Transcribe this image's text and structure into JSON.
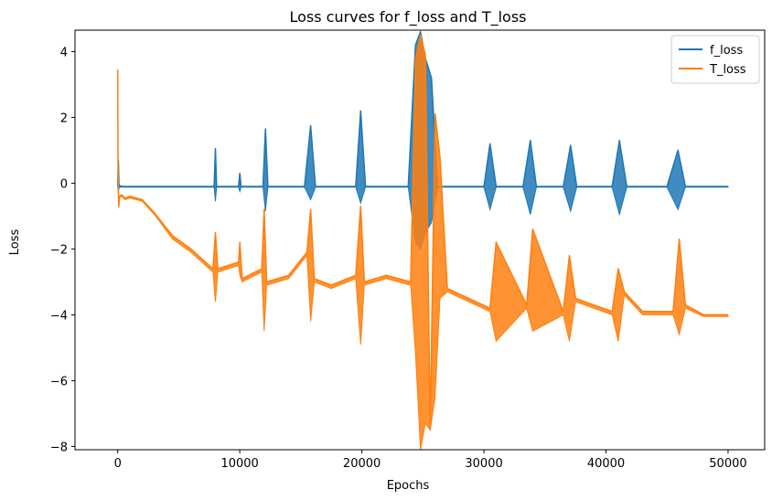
{
  "chart_data": {
    "type": "line",
    "title": "Loss curves for f_loss and T_loss",
    "xlabel": "Epochs",
    "ylabel": "Loss",
    "xlim": [
      -3500,
      53000
    ],
    "ylim": [
      -8.1,
      4.65
    ],
    "xticks": [
      0,
      10000,
      20000,
      30000,
      40000,
      50000
    ],
    "xtick_labels": [
      "0",
      "10000",
      "20000",
      "30000",
      "40000",
      "50000"
    ],
    "yticks": [
      -8,
      -6,
      -4,
      -2,
      0,
      2,
      4
    ],
    "ytick_labels": [
      "−8",
      "−6",
      "−4",
      "−2",
      "0",
      "2",
      "4"
    ],
    "grid": false,
    "legend_position": "top-right",
    "series": [
      {
        "name": "f_loss",
        "color": "#1f77b4",
        "x": [
          0,
          50,
          100,
          200,
          400,
          1000,
          2000,
          4000,
          7900,
          8000,
          8100,
          9900,
          10000,
          10100,
          11900,
          12100,
          12300,
          15300,
          15800,
          16200,
          19500,
          19900,
          20300,
          23800,
          24400,
          24800,
          25200,
          25700,
          26200,
          30000,
          30500,
          31000,
          33200,
          33800,
          34300,
          36500,
          37100,
          37600,
          40500,
          41100,
          41700,
          45000,
          45900,
          46500,
          50000
        ],
        "y": [
          -0.1,
          0.7,
          -0.05,
          -0.08,
          -0.1,
          -0.1,
          -0.1,
          -0.1,
          -0.1,
          1.05,
          -0.1,
          -0.1,
          0.3,
          -0.1,
          -0.1,
          1.65,
          -0.1,
          -0.1,
          1.75,
          -0.1,
          -0.1,
          2.2,
          -0.1,
          -0.1,
          4.2,
          4.6,
          3.8,
          3.2,
          -0.1,
          -0.1,
          1.2,
          -0.1,
          -0.1,
          1.3,
          -0.1,
          -0.1,
          1.15,
          -0.1,
          -0.1,
          1.3,
          -0.1,
          -0.1,
          1.0,
          -0.1,
          -0.1
        ],
        "envelope_bottom": [
          -0.1,
          -0.3,
          -0.15,
          -0.12,
          -0.12,
          -0.12,
          -0.12,
          -0.12,
          -0.12,
          -0.55,
          -0.12,
          -0.12,
          -0.25,
          -0.12,
          -0.12,
          -0.85,
          -0.12,
          -0.12,
          -0.5,
          -0.12,
          -0.12,
          -0.6,
          -0.12,
          -0.12,
          -1.8,
          -2.0,
          -1.5,
          -1.2,
          -0.12,
          -0.12,
          -0.8,
          -0.12,
          -0.12,
          -0.95,
          -0.12,
          -0.12,
          -0.85,
          -0.12,
          -0.12,
          -0.95,
          -0.12,
          -0.12,
          -0.8,
          -0.12,
          -0.12
        ]
      },
      {
        "name": "T_loss",
        "color": "#ff7f0e",
        "x": [
          0,
          30,
          80,
          150,
          300,
          600,
          1000,
          2000,
          3000,
          4500,
          6000,
          7800,
          8000,
          8200,
          9900,
          10000,
          10200,
          11800,
          12000,
          12200,
          14000,
          15500,
          15800,
          16100,
          17500,
          19500,
          19900,
          20200,
          22000,
          24000,
          24400,
          24800,
          25200,
          25600,
          26000,
          26400,
          27000,
          30500,
          31000,
          33500,
          34000,
          36500,
          37000,
          37500,
          40500,
          41000,
          41500,
          43000,
          45500,
          46000,
          46500,
          48000,
          50000
        ],
        "y": [
          3.45,
          0.1,
          -0.7,
          -0.4,
          -0.35,
          -0.45,
          -0.4,
          -0.5,
          -0.9,
          -1.6,
          -2.0,
          -2.6,
          -1.5,
          -2.6,
          -2.4,
          -1.8,
          -2.9,
          -2.6,
          -0.8,
          -3.0,
          -2.8,
          -2.1,
          -0.8,
          -2.9,
          -3.1,
          -2.8,
          -0.7,
          -3.0,
          -2.8,
          -3.0,
          3.8,
          4.5,
          3.9,
          -7.5,
          2.1,
          0.8,
          -3.2,
          -3.8,
          -1.8,
          -3.7,
          -1.4,
          -3.9,
          -2.2,
          -3.5,
          -3.9,
          -2.6,
          -3.3,
          -3.9,
          -3.9,
          -1.7,
          -3.7,
          -4.0,
          -4.0
        ],
        "envelope_bottom": [
          3.45,
          0.1,
          -0.75,
          -0.45,
          -0.4,
          -0.5,
          -0.45,
          -0.55,
          -0.95,
          -1.7,
          -2.1,
          -2.7,
          -3.6,
          -2.7,
          -2.5,
          -2.8,
          -3.0,
          -2.7,
          -4.5,
          -3.1,
          -2.9,
          -2.2,
          -4.2,
          -3.0,
          -3.2,
          -2.9,
          -4.9,
          -3.1,
          -2.9,
          -3.1,
          -5.2,
          -8.1,
          -7.3,
          -7.5,
          -6.5,
          -3.5,
          -3.3,
          -3.9,
          -4.8,
          -3.8,
          -4.5,
          -4.0,
          -4.8,
          -3.6,
          -4.0,
          -4.8,
          -3.4,
          -4.0,
          -4.0,
          -4.6,
          -3.8,
          -4.05,
          -4.05
        ]
      }
    ]
  }
}
